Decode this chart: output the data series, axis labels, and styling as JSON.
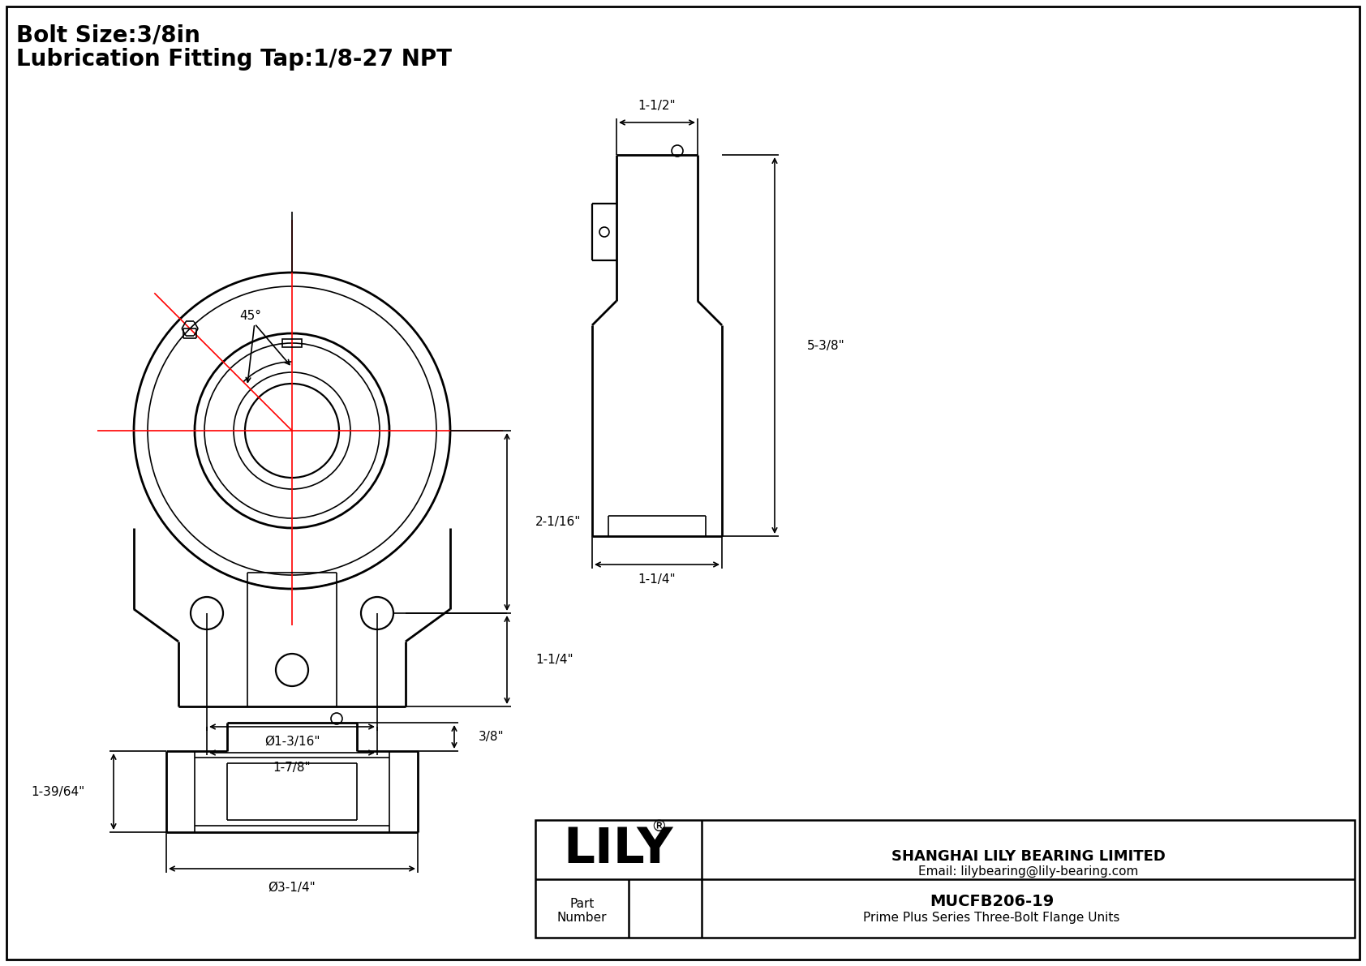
{
  "title_line1": "Bolt Size:3/8in",
  "title_line2": "Lubrication Fitting Tap:1/8-27 NPT",
  "bg_color": "#ffffff",
  "line_color": "#000000",
  "red_color": "#ff0000",
  "company": "SHANGHAI LILY BEARING LIMITED",
  "email": "Email: lilybearing@lily-bearing.com",
  "part_number": "MUCFB206-19",
  "part_desc": "Prime Plus Series Three-Bolt Flange Units",
  "logo": "LILY",
  "logo_reg": "®",
  "dim_45": "45°",
  "dim_2_1_16": "2-1/16\"",
  "dim_1_1_4_right": "1-1/4\"",
  "dim_phi_1_3_16": "Ø1-3/16\"",
  "dim_1_7_8": "1-7/8\"",
  "dim_1_1_2": "1-1/2\"",
  "dim_5_3_8": "5-3/8\"",
  "dim_1_1_4_bot": "1-1/4\"",
  "dim_3_8": "3/8\"",
  "dim_1_39_64": "1-39/64\"",
  "dim_phi_3_1_4": "Ø3-1/4\""
}
